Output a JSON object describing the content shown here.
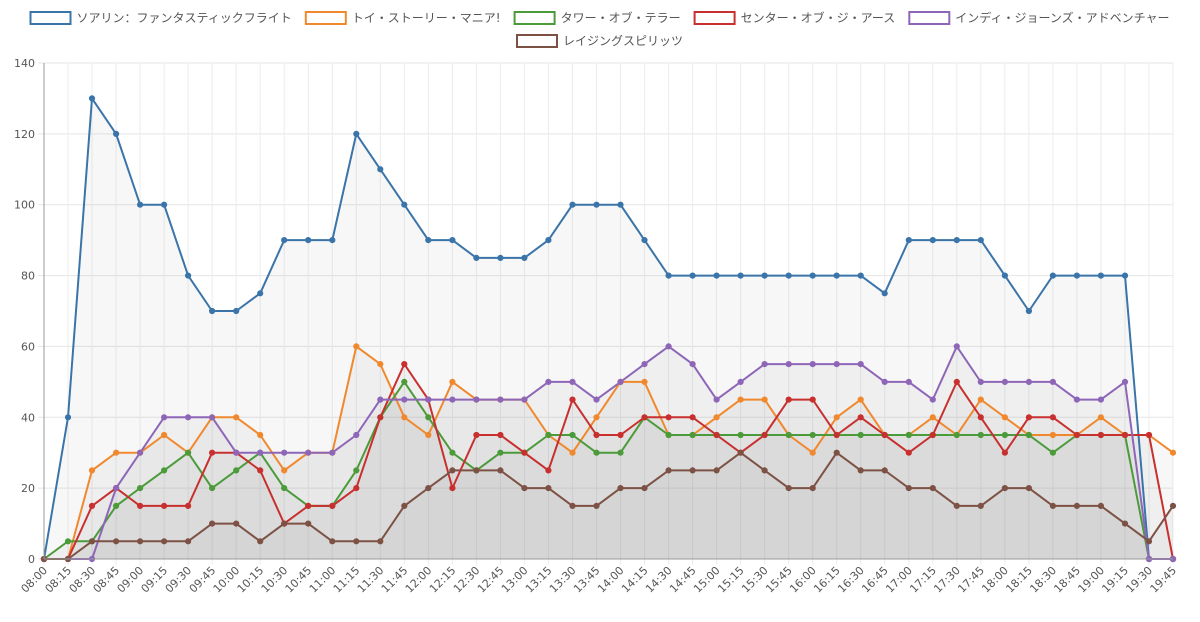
{
  "chart_data": {
    "type": "line",
    "ylim": [
      0,
      140
    ],
    "yticks": [
      0,
      20,
      40,
      60,
      80,
      100,
      120,
      140
    ],
    "grid": true,
    "legend_position": "top",
    "categories": [
      "08:00",
      "08:15",
      "08:30",
      "08:45",
      "09:00",
      "09:15",
      "09:30",
      "09:45",
      "10:00",
      "10:15",
      "10:30",
      "10:45",
      "11:00",
      "11:15",
      "11:30",
      "11:45",
      "12:00",
      "12:15",
      "12:30",
      "12:45",
      "13:00",
      "13:15",
      "13:30",
      "13:45",
      "14:00",
      "14:15",
      "14:30",
      "14:45",
      "15:00",
      "15:15",
      "15:30",
      "15:45",
      "16:00",
      "16:15",
      "16:30",
      "16:45",
      "17:00",
      "17:15",
      "17:30",
      "17:45",
      "18:00",
      "18:15",
      "18:30",
      "18:45",
      "19:00",
      "19:15",
      "19:30",
      "19:45"
    ],
    "series": [
      {
        "name": "ソアリン：ファンタスティックフライト",
        "color": "#3a74a8",
        "values": [
          0,
          40,
          130,
          120,
          100,
          100,
          80,
          70,
          70,
          75,
          90,
          90,
          90,
          120,
          110,
          100,
          90,
          90,
          85,
          85,
          85,
          90,
          100,
          100,
          100,
          90,
          80,
          80,
          80,
          80,
          80,
          80,
          80,
          80,
          80,
          75,
          90,
          90,
          90,
          90,
          80,
          70,
          80,
          80,
          80,
          80,
          0,
          0
        ]
      },
      {
        "name": "トイ・ストーリー・マニア!",
        "color": "#f0882e",
        "values": [
          0,
          0,
          25,
          30,
          30,
          35,
          30,
          40,
          40,
          35,
          25,
          30,
          30,
          60,
          55,
          40,
          35,
          50,
          45,
          45,
          45,
          35,
          30,
          40,
          50,
          50,
          35,
          35,
          40,
          45,
          45,
          35,
          30,
          40,
          45,
          35,
          35,
          40,
          35,
          45,
          40,
          35,
          35,
          35,
          40,
          35,
          35,
          30
        ]
      },
      {
        "name": "タワー・オブ・テラー",
        "color": "#4b9b3a",
        "values": [
          0,
          5,
          5,
          15,
          20,
          25,
          30,
          20,
          25,
          30,
          20,
          15,
          15,
          25,
          40,
          50,
          40,
          30,
          25,
          30,
          30,
          35,
          35,
          30,
          30,
          40,
          35,
          35,
          35,
          35,
          35,
          35,
          35,
          35,
          35,
          35,
          35,
          35,
          35,
          35,
          35,
          35,
          30,
          35,
          35,
          35,
          0,
          0
        ]
      },
      {
        "name": "センター・オブ・ジ・アース",
        "color": "#c7302f",
        "values": [
          0,
          0,
          15,
          20,
          15,
          15,
          15,
          30,
          30,
          25,
          10,
          15,
          15,
          20,
          40,
          55,
          45,
          20,
          35,
          35,
          30,
          25,
          45,
          35,
          35,
          40,
          40,
          40,
          35,
          30,
          35,
          45,
          45,
          35,
          40,
          35,
          30,
          35,
          50,
          40,
          30,
          40,
          40,
          35,
          35,
          35,
          35,
          0
        ]
      },
      {
        "name": "インディ・ジョーンズ・アドベンチャー",
        "color": "#8e66b8",
        "values": [
          0,
          0,
          0,
          20,
          30,
          40,
          40,
          40,
          30,
          30,
          30,
          30,
          30,
          35,
          45,
          45,
          45,
          45,
          45,
          45,
          45,
          50,
          50,
          45,
          50,
          55,
          60,
          55,
          45,
          50,
          55,
          55,
          55,
          55,
          55,
          50,
          50,
          45,
          60,
          50,
          50,
          50,
          50,
          45,
          45,
          50,
          0,
          0
        ]
      },
      {
        "name": "レイジングスピリッツ",
        "color": "#7d5245",
        "values": [
          0,
          0,
          5,
          5,
          5,
          5,
          5,
          10,
          10,
          5,
          10,
          10,
          5,
          5,
          5,
          15,
          20,
          25,
          25,
          25,
          20,
          20,
          15,
          15,
          20,
          20,
          25,
          25,
          25,
          30,
          25,
          20,
          20,
          30,
          25,
          25,
          20,
          20,
          15,
          15,
          20,
          20,
          15,
          15,
          15,
          10,
          5,
          15
        ]
      }
    ]
  }
}
